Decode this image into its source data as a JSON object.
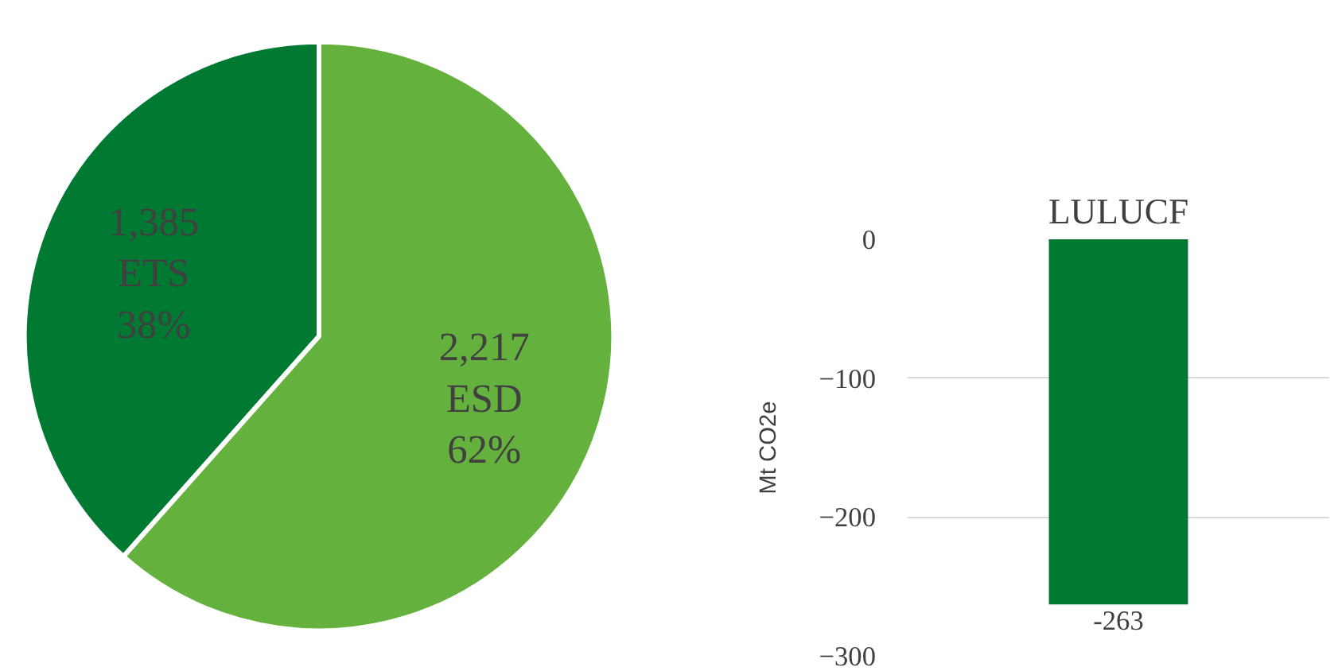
{
  "chart_data": [
    {
      "type": "pie",
      "categories": [
        "ETS",
        "ESD"
      ],
      "values": [
        1385,
        2217
      ],
      "colors": [
        "#007a33",
        "#64b13d"
      ],
      "value_labels": [
        "1,385",
        "2,217"
      ],
      "data_labels": true,
      "annotations": [
        {
          "text": "38%",
          "x": "ETS"
        },
        {
          "text": "62%",
          "x": "ESD"
        }
      ]
    },
    {
      "type": "bar",
      "title": "LULUCF",
      "ylabel": "Mt CO2e",
      "categories": [
        null
      ],
      "values": [
        -263
      ],
      "color": "#007a33",
      "ylim": [
        -300,
        0
      ],
      "yticks": [
        0,
        -100,
        -200,
        -300
      ],
      "grid": "y",
      "data_labels": true
    }
  ]
}
